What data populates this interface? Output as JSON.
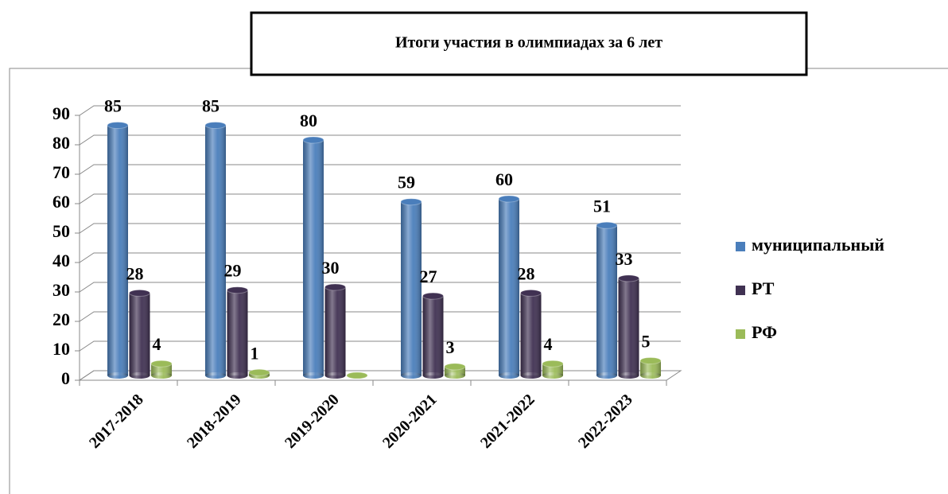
{
  "chart_data": {
    "type": "bar3d",
    "title": "Итоги участия в олимпиадах за 6 лет",
    "categories": [
      "2017-2018",
      "2018-2019",
      "2019-2020",
      "2020-2021",
      "2021-2022",
      "2022-2023"
    ],
    "series": [
      {
        "name": "муниципальный",
        "color": "#4a7ebb",
        "values": [
          85,
          85,
          80,
          59,
          60,
          51
        ]
      },
      {
        "name": "РТ",
        "color": "#403152",
        "values": [
          28,
          29,
          30,
          27,
          28,
          33
        ]
      },
      {
        "name": "РФ",
        "color": "#9bbb59",
        "values": [
          4,
          1,
          0,
          3,
          4,
          5
        ],
        "value_labels": [
          "4",
          "1",
          null,
          "3",
          "4",
          "5"
        ]
      }
    ],
    "ylim": [
      0,
      90
    ],
    "yticks": [
      0,
      10,
      20,
      30,
      40,
      50,
      60,
      70,
      80,
      90
    ],
    "grid": true,
    "legend": "right"
  }
}
